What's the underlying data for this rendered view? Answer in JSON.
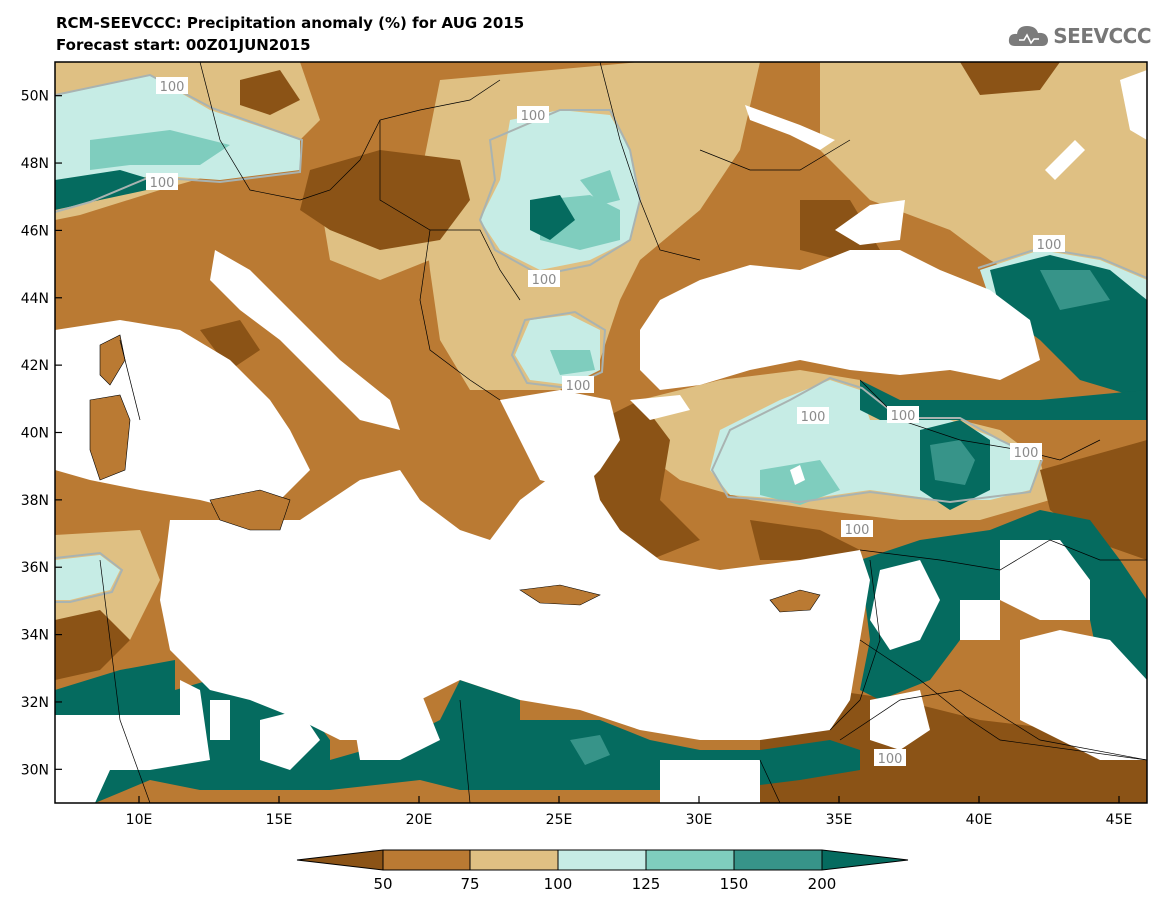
{
  "header": {
    "title": "RCM-SEEVCCC: Precipitation anomaly (%) for AUG 2015",
    "subtitle": "Forecast start: 00Z01JUN2015",
    "logo_text": "SEEVCCC"
  },
  "map": {
    "latitude_labels": [
      "50N",
      "48N",
      "46N",
      "44N",
      "42N",
      "40N",
      "38N",
      "36N",
      "34N",
      "32N",
      "30N"
    ],
    "longitude_labels": [
      "10E",
      "15E",
      "20E",
      "25E",
      "30E",
      "35E",
      "40E",
      "45E"
    ],
    "contour_labels": [
      "100",
      "100",
      "100",
      "100",
      "100",
      "100",
      "100",
      "100",
      "100",
      "100"
    ],
    "sea_color": "#ffffff",
    "land_default_color": "#ba7a33"
  },
  "legend": {
    "tick_labels": [
      "50",
      "75",
      "100",
      "125",
      "150",
      "200"
    ],
    "colors": {
      "below_50": "#8b5316",
      "50_75": "#ba7a33",
      "75_100": "#dfc083",
      "100_125": "#c6ece5",
      "125_150": "#7fcdbe",
      "150_200": "#379489",
      "above_200": "#056b5f"
    }
  }
}
